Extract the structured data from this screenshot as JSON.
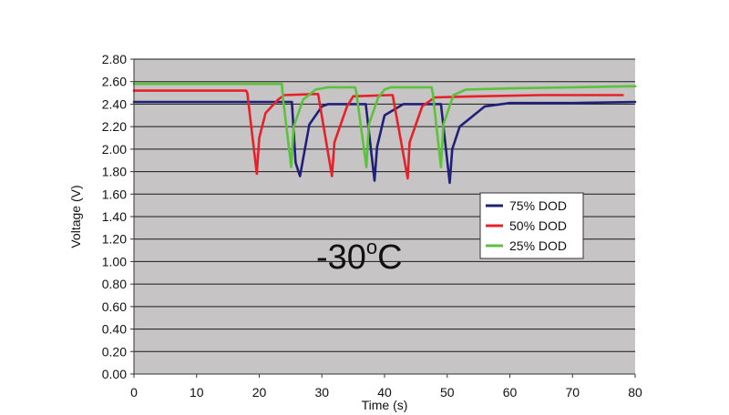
{
  "chart_data": {
    "type": "line",
    "xlabel": "Time (s)",
    "ylabel": "Voltage (V)",
    "xlim": [
      0,
      80
    ],
    "ylim": [
      0,
      2.8
    ],
    "x_ticks": [
      "0",
      "10",
      "20",
      "30",
      "40",
      "50",
      "60",
      "70",
      "80"
    ],
    "y_ticks": [
      "0.00",
      "0.20",
      "0.40",
      "0.60",
      "0.80",
      "1.00",
      "1.20",
      "1.40",
      "1.60",
      "1.80",
      "2.00",
      "2.20",
      "2.40",
      "2.60",
      "2.80"
    ],
    "grid": "horizontal",
    "legend_position": "right",
    "annotation": {
      "main": "-30",
      "sup": "o",
      "tail": "C"
    },
    "colors": {
      "plot_background": "#c6c4c4",
      "grid": "#1a1a1a"
    },
    "series": [
      {
        "name": "75% DOD",
        "color": "#20207a",
        "x": [
          0,
          18,
          24,
          25.2,
          25.8,
          26.5,
          28,
          30,
          31,
          35,
          36,
          37,
          38.4,
          38.8,
          40,
          43,
          48,
          49,
          50.4,
          50.8,
          52,
          56,
          60,
          70,
          80
        ],
        "y": [
          2.42,
          2.42,
          2.42,
          2.42,
          1.88,
          1.76,
          2.22,
          2.38,
          2.4,
          2.4,
          2.4,
          2.4,
          1.72,
          2.02,
          2.3,
          2.4,
          2.4,
          2.4,
          1.7,
          2.0,
          2.2,
          2.38,
          2.41,
          2.41,
          2.42
        ]
      },
      {
        "name": "50% DOD",
        "color": "#e8202a",
        "x": [
          0,
          17.9,
          18.1,
          19.6,
          20,
          21,
          23,
          24,
          29,
          29.4,
          31.6,
          32,
          34,
          35,
          41,
          41.3,
          43.7,
          44,
          46,
          48,
          55,
          65,
          78
        ],
        "y": [
          2.52,
          2.52,
          2.5,
          1.78,
          2.1,
          2.32,
          2.44,
          2.48,
          2.49,
          2.49,
          1.76,
          2.06,
          2.38,
          2.47,
          2.48,
          2.48,
          1.74,
          2.06,
          2.38,
          2.46,
          2.47,
          2.48,
          2.48
        ]
      },
      {
        "name": "25% DOD",
        "color": "#5cc23c",
        "x": [
          0,
          23.6,
          23.8,
          25.1,
          25.5,
          27,
          29,
          31,
          35.3,
          35.5,
          37.1,
          37.5,
          39,
          40,
          41,
          47.5,
          47.7,
          49,
          49.4,
          51,
          53,
          60,
          70,
          80
        ],
        "y": [
          2.58,
          2.58,
          2.45,
          1.84,
          2.2,
          2.44,
          2.53,
          2.55,
          2.55,
          2.5,
          1.84,
          2.22,
          2.46,
          2.53,
          2.55,
          2.55,
          2.5,
          1.84,
          2.22,
          2.48,
          2.53,
          2.54,
          2.55,
          2.56
        ]
      }
    ]
  }
}
